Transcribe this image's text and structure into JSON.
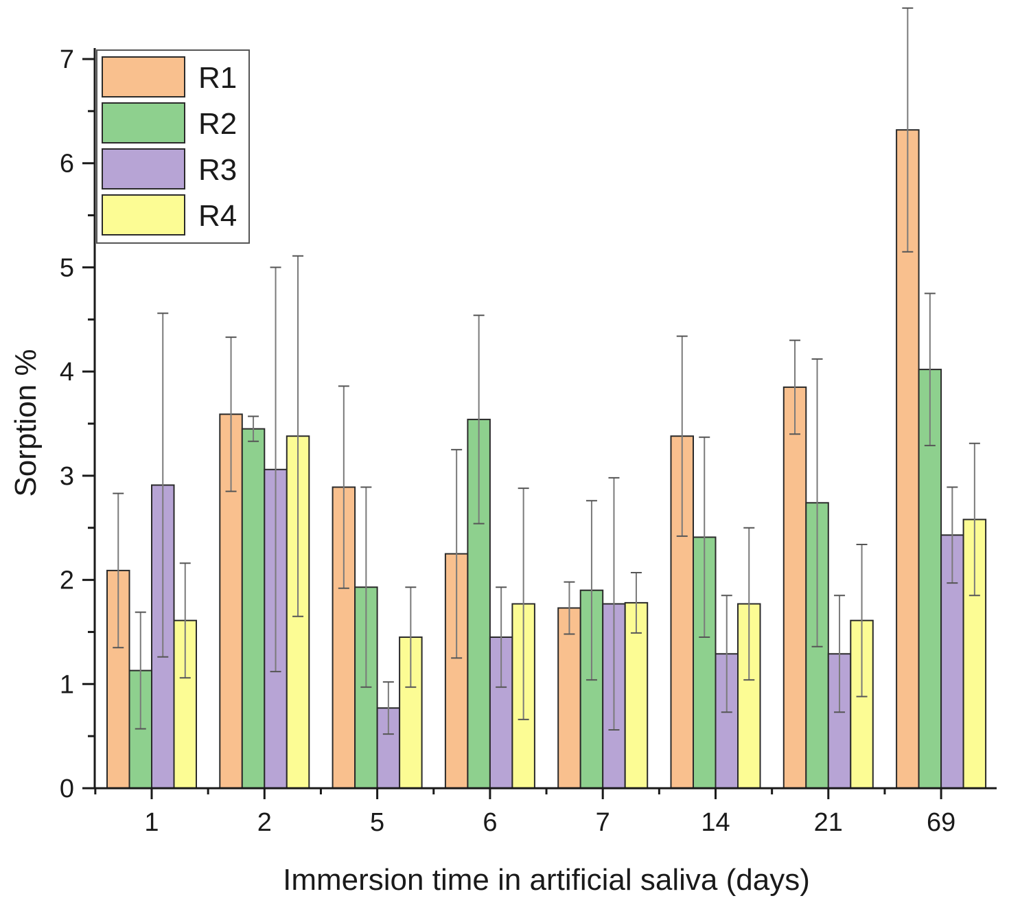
{
  "chart_data": {
    "type": "bar",
    "title": "",
    "xlabel": "Immersion time in artificial saliva (days)",
    "ylabel": "Sorption %",
    "ylim": [
      0,
      7
    ],
    "yticks": [
      0,
      1,
      2,
      3,
      4,
      5,
      6,
      7
    ],
    "categories": [
      "1",
      "2",
      "5",
      "6",
      "7",
      "14",
      "21",
      "69"
    ],
    "legend_position": "top-left",
    "grid": false,
    "error_bars": true,
    "series": [
      {
        "name": "R1",
        "color": "#F9C08E",
        "values": [
          2.09,
          3.59,
          2.89,
          2.25,
          1.73,
          3.38,
          3.85,
          6.32
        ],
        "errors": [
          0.74,
          0.74,
          0.97,
          1.0,
          0.25,
          0.96,
          0.45,
          1.17
        ]
      },
      {
        "name": "R2",
        "color": "#8ED08E",
        "values": [
          1.13,
          3.45,
          1.93,
          3.54,
          1.9,
          2.41,
          2.74,
          4.02
        ],
        "errors": [
          0.56,
          0.12,
          0.96,
          1.0,
          0.86,
          0.96,
          1.38,
          0.73
        ]
      },
      {
        "name": "R3",
        "color": "#B7A4D5",
        "values": [
          2.91,
          3.06,
          0.77,
          1.45,
          1.77,
          1.29,
          1.29,
          2.43
        ],
        "errors": [
          1.65,
          1.94,
          0.25,
          0.48,
          1.21,
          0.56,
          0.56,
          0.46
        ]
      },
      {
        "name": "R4",
        "color": "#FCFC94",
        "values": [
          1.61,
          3.38,
          1.45,
          1.77,
          1.78,
          1.77,
          1.61,
          2.58
        ],
        "errors": [
          0.55,
          1.73,
          0.48,
          1.11,
          0.29,
          0.73,
          0.73,
          0.73
        ]
      }
    ]
  }
}
